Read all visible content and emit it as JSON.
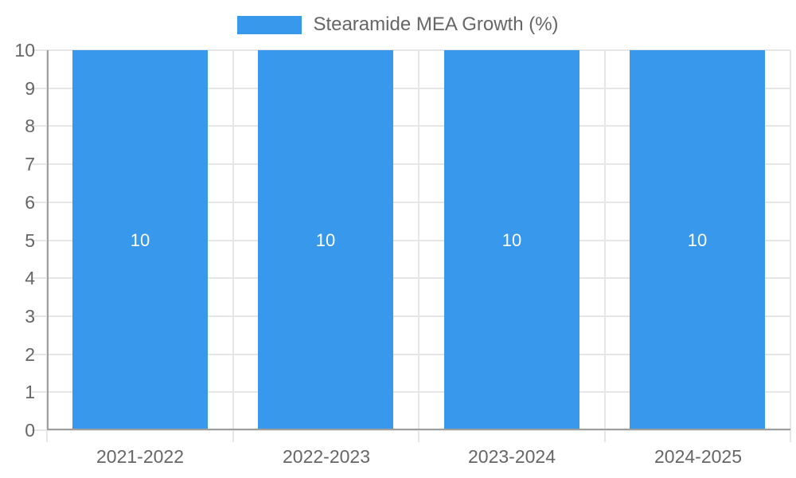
{
  "chart_data": {
    "type": "bar",
    "title": "",
    "legend": {
      "label": "Stearamide MEA Growth (%)",
      "position": "top"
    },
    "categories": [
      "2021-2022",
      "2022-2023",
      "2023-2024",
      "2024-2025"
    ],
    "values": [
      10,
      10,
      10,
      10
    ],
    "bar_value_labels": [
      "10",
      "10",
      "10",
      "10"
    ],
    "xlabel": "",
    "ylabel": "",
    "ylim": [
      0,
      10
    ],
    "ytick_step": 1,
    "ytick_labels": [
      "0",
      "1",
      "2",
      "3",
      "4",
      "5",
      "6",
      "7",
      "8",
      "9",
      "10"
    ],
    "grid": true,
    "colors": {
      "bar": "#3899EC",
      "grid": "#E6E6E6",
      "axis": "#9E9E9E",
      "tick_text": "#666666",
      "bar_label_text": "#FFFFFF",
      "background": "#FFFFFF"
    }
  }
}
